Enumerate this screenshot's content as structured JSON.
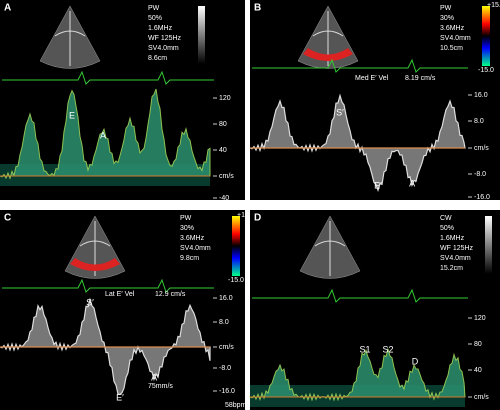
{
  "panels": [
    {
      "label": "A",
      "settings": [
        "PW",
        "50%",
        "1.6MHz",
        "WF 125Hz",
        "SV4.0mm",
        "8.6cm"
      ],
      "scale": [
        "120",
        "80",
        "40",
        "cm/s",
        "-40"
      ],
      "waves": [
        "E",
        "A"
      ]
    },
    {
      "label": "B",
      "settings": [
        "PW",
        "30%",
        "3.6MHz",
        "SV4.0mm",
        "10.5cm"
      ],
      "colorbar": [
        "+15.0",
        "-15.0"
      ],
      "annotation": "Med E′ Vel",
      "measurement": "8.19 cm/s",
      "scale": [
        "16.0",
        "8.0",
        "cm/s",
        "-8.0",
        "-16.0"
      ],
      "waves": [
        "S′",
        "E′",
        "A′"
      ]
    },
    {
      "label": "C",
      "settings": [
        "PW",
        "30%",
        "3.6MHz",
        "SV4.0mm",
        "9.8cm"
      ],
      "colorbar": [
        "+15.0",
        "-15.0"
      ],
      "annotation": "Lat E′ Vel",
      "measurement": "12.9 cm/s",
      "scale": [
        "16.0",
        "8.0",
        "cm/s",
        "-8.0",
        "-16.0"
      ],
      "waves": [
        "S′",
        "E′",
        "A′"
      ],
      "footer": [
        "75mm/s",
        "58bpm"
      ]
    },
    {
      "label": "D",
      "settings": [
        "CW",
        "50%",
        "1.6MHz",
        "WF 125Hz",
        "SV4.0mm",
        "15.2cm"
      ],
      "scale": [
        "120",
        "80",
        "40",
        "cm/s"
      ],
      "waves": [
        "S1",
        "S2",
        "D"
      ]
    }
  ]
}
